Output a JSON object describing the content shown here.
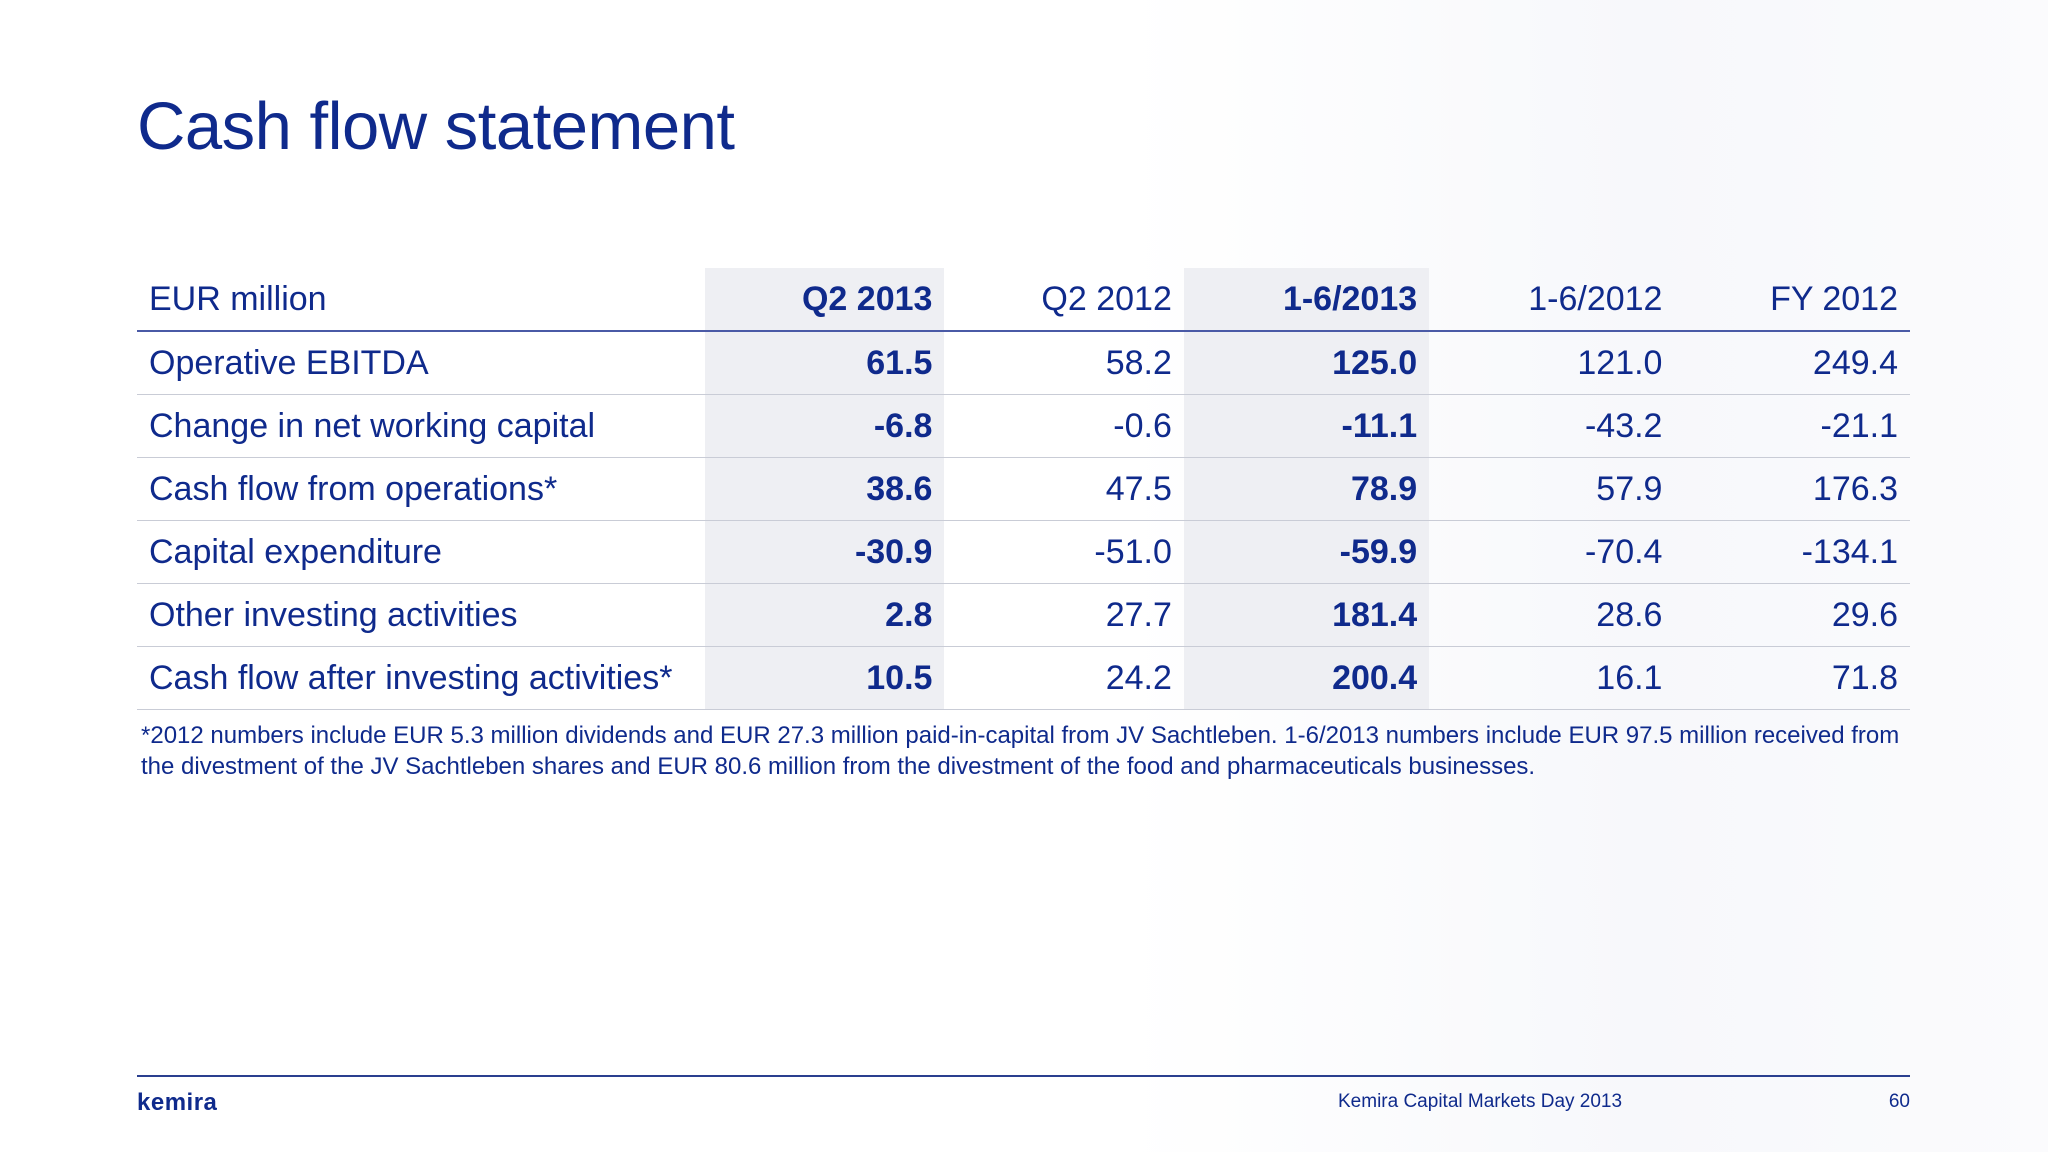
{
  "title": "Cash flow statement",
  "table": {
    "headers": [
      "EUR million",
      "Q2 2013",
      "Q2 2012",
      "1-6/2013",
      "1-6/2012",
      "FY 2012"
    ],
    "rows": [
      {
        "label": "Operative EBITDA",
        "values": [
          "61.5",
          "58.2",
          "125.0",
          "121.0",
          "249.4"
        ]
      },
      {
        "label": "Change in net working capital",
        "values": [
          "-6.8",
          "-0.6",
          "-11.1",
          "-43.2",
          "-21.1"
        ]
      },
      {
        "label": "Cash flow from operations*",
        "values": [
          "38.6",
          "47.5",
          "78.9",
          "57.9",
          "176.3"
        ]
      },
      {
        "label": "Capital expenditure",
        "values": [
          "-30.9",
          "-51.0",
          "-59.9",
          "-70.4",
          "-134.1"
        ]
      },
      {
        "label": "Other investing activities",
        "values": [
          "2.8",
          "27.7",
          "181.4",
          "28.6",
          "29.6"
        ]
      },
      {
        "label": "Cash flow after investing activities*",
        "values": [
          "10.5",
          "24.2",
          "200.4",
          "16.1",
          "71.8"
        ]
      }
    ]
  },
  "footnote": "*2012 numbers include EUR 5.3 million dividends and EUR 27.3 million paid-in-capital from JV Sachtleben. 1-6/2013 numbers include EUR 97.5 million received from the divestment of the JV Sachtleben shares and EUR 80.6 million from the divestment of the food and pharmaceuticals businesses.",
  "footer": {
    "logo": "kemira",
    "event": "Kemira Capital Markets Day 2013",
    "page": "60"
  },
  "colors": {
    "text": "#0f2a8c",
    "highlight_column": "#eeeff3",
    "rule": "#c9ccd6"
  }
}
